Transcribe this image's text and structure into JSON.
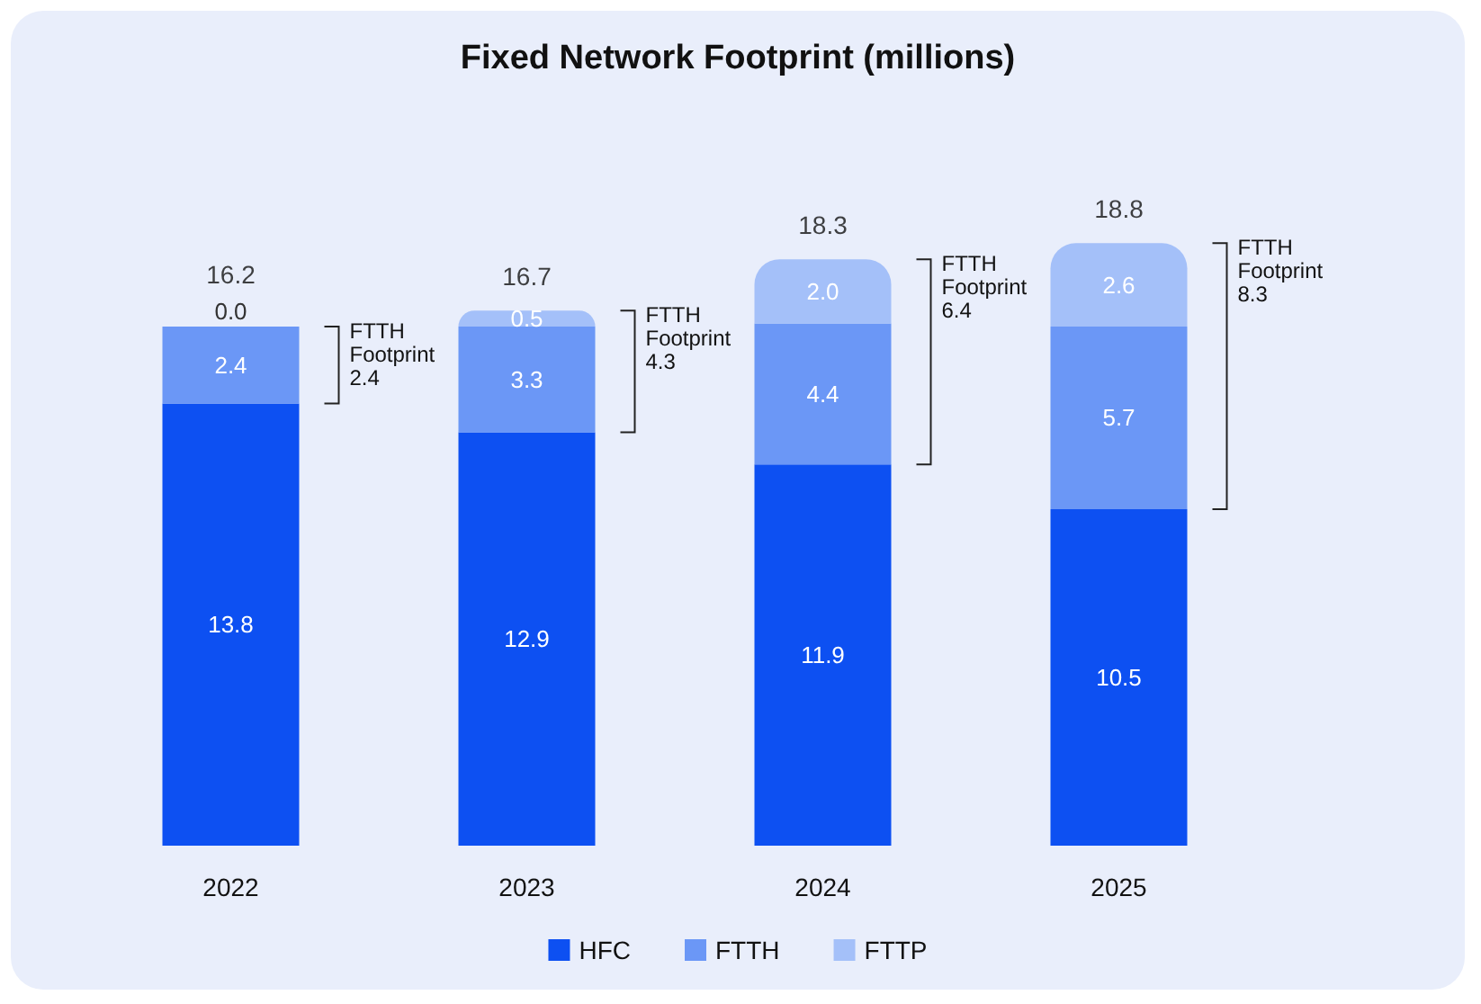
{
  "chart_data": {
    "type": "bar",
    "title": "Fixed Network Footprint (millions)",
    "categories": [
      "2022",
      "2023",
      "2024",
      "2025"
    ],
    "stacked": true,
    "legend": "bottom",
    "series": [
      {
        "name": "HFC",
        "color": "#0d50f2",
        "values": [
          13.8,
          12.9,
          11.9,
          10.5
        ],
        "value_labels": [
          "13.8",
          "12.9",
          "11.9",
          "10.5"
        ]
      },
      {
        "name": "FTTH",
        "color": "#6b97f6",
        "values": [
          2.4,
          3.3,
          4.4,
          5.7
        ],
        "value_labels": [
          "2.4",
          "3.3",
          "4.4",
          "5.7"
        ]
      },
      {
        "name": "FTTP",
        "color": "#a4c0f9",
        "values": [
          0.0,
          0.5,
          2.0,
          2.6
        ],
        "value_labels": [
          "0.0",
          "0.5",
          "2.0",
          "2.6"
        ]
      }
    ],
    "totals": [
      "16.2",
      "16.7",
      "18.3",
      "18.8"
    ],
    "annotations": [
      "FTTH Footprint 2.4",
      "FTTH Footprint 4.3",
      "FTTH Footprint 6.4",
      "FTTH Footprint 8.3"
    ]
  }
}
